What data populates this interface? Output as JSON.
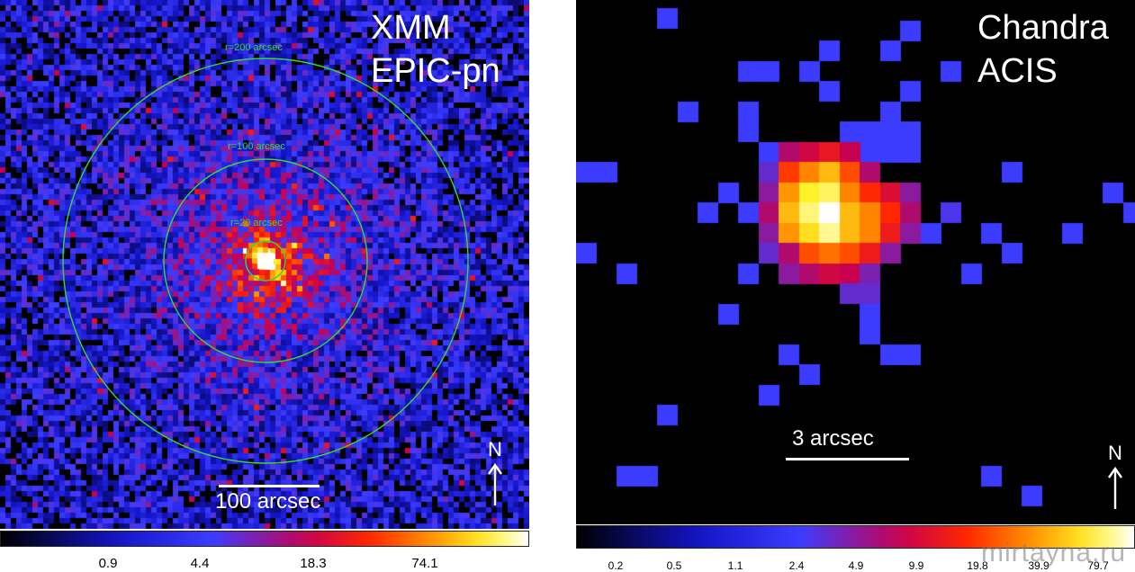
{
  "xmm": {
    "title_line1": "XMM",
    "title_line2": "EPIC-pn",
    "rings": [
      "r=200 arcsec",
      "r=100 arcsec",
      "r=20 arcsec"
    ],
    "scale_label": "100 arcsec",
    "north_label": "N",
    "colorbar_ticks": [
      "0.9",
      "4.4",
      "18.3",
      "74.1"
    ]
  },
  "chandra": {
    "title_line1": "Chandra",
    "title_line2": "ACIS",
    "scale_label": "3 arcsec",
    "north_label": "N",
    "colorbar_ticks": [
      "0.2",
      "0.5",
      "1.1",
      "2.4",
      "4.9",
      "9.9",
      "19.8",
      "39.9",
      "79.7"
    ]
  },
  "colors": {
    "ring": "#39d639",
    "background": "#000000"
  },
  "watermark": "mirtayna.ru"
}
